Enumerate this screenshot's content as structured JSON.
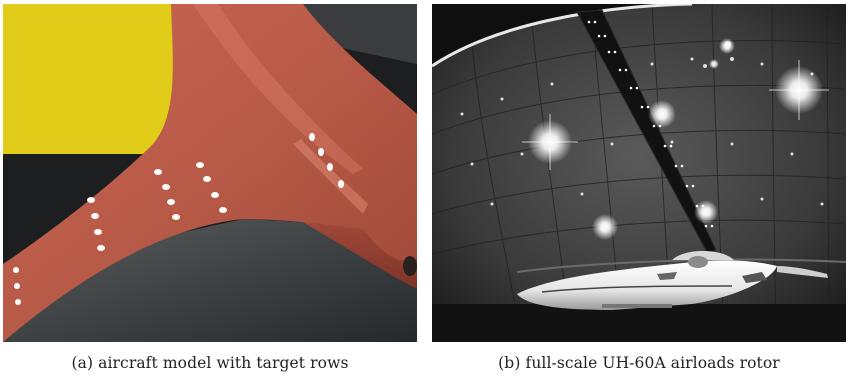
{
  "figure": {
    "panels": [
      {
        "id": "a",
        "caption": "(a)  aircraft model with target rows"
      },
      {
        "id": "b",
        "caption": "(b)  full-scale UH-60A airloads rotor"
      }
    ],
    "colors": {
      "wing": "#b85a48",
      "wing_highlight": "#d57a66",
      "background_yellow": "#e8d21c",
      "floor": "#3a3d3f",
      "chamber": "#2f2f2f",
      "target": "#ffffff"
    }
  }
}
